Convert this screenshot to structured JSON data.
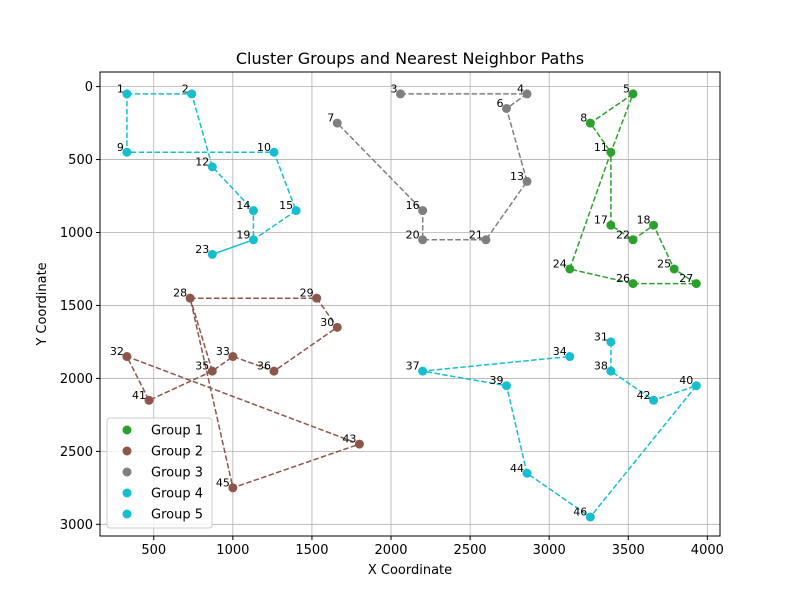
{
  "chart_data": {
    "type": "scatter",
    "title": "Cluster Groups and Nearest Neighbor Paths",
    "xlabel": "X Coordinate",
    "ylabel": "Y Coordinate",
    "xlim": [
      160,
      4080
    ],
    "ylim": [
      3080,
      -100
    ],
    "y_inverted": true,
    "grid": true,
    "legend_position": "lower-left",
    "x_ticks": [
      500,
      1000,
      1500,
      2000,
      2500,
      3000,
      3500,
      4000
    ],
    "y_ticks": [
      0,
      500,
      1000,
      1500,
      2000,
      2500,
      3000
    ],
    "points": [
      {
        "id": "1",
        "x": 330,
        "y": 50
      },
      {
        "id": "2",
        "x": 740,
        "y": 50
      },
      {
        "id": "3",
        "x": 2060,
        "y": 50
      },
      {
        "id": "4",
        "x": 2860,
        "y": 50
      },
      {
        "id": "5",
        "x": 3530,
        "y": 50
      },
      {
        "id": "6",
        "x": 2730,
        "y": 150
      },
      {
        "id": "7",
        "x": 1660,
        "y": 250
      },
      {
        "id": "8",
        "x": 3260,
        "y": 250
      },
      {
        "id": "9",
        "x": 330,
        "y": 450
      },
      {
        "id": "10",
        "x": 1260,
        "y": 450
      },
      {
        "id": "11",
        "x": 3390,
        "y": 450
      },
      {
        "id": "12",
        "x": 870,
        "y": 550
      },
      {
        "id": "13",
        "x": 2860,
        "y": 650
      },
      {
        "id": "14",
        "x": 1130,
        "y": 850
      },
      {
        "id": "15",
        "x": 1400,
        "y": 850
      },
      {
        "id": "16",
        "x": 2200,
        "y": 850
      },
      {
        "id": "17",
        "x": 3390,
        "y": 950
      },
      {
        "id": "18",
        "x": 3660,
        "y": 950
      },
      {
        "id": "19",
        "x": 1130,
        "y": 1050
      },
      {
        "id": "20",
        "x": 2200,
        "y": 1050
      },
      {
        "id": "21",
        "x": 2600,
        "y": 1050
      },
      {
        "id": "22",
        "x": 3530,
        "y": 1050
      },
      {
        "id": "23",
        "x": 870,
        "y": 1150
      },
      {
        "id": "24",
        "x": 3130,
        "y": 1250
      },
      {
        "id": "25",
        "x": 3790,
        "y": 1250
      },
      {
        "id": "26",
        "x": 3530,
        "y": 1350
      },
      {
        "id": "27",
        "x": 3930,
        "y": 1350
      },
      {
        "id": "28",
        "x": 730,
        "y": 1450
      },
      {
        "id": "29",
        "x": 1530,
        "y": 1450
      },
      {
        "id": "30",
        "x": 1660,
        "y": 1650
      },
      {
        "id": "31",
        "x": 3390,
        "y": 1750
      },
      {
        "id": "32",
        "x": 330,
        "y": 1850
      },
      {
        "id": "33",
        "x": 1000,
        "y": 1850
      },
      {
        "id": "34",
        "x": 3130,
        "y": 1850
      },
      {
        "id": "35",
        "x": 870,
        "y": 1950
      },
      {
        "id": "36",
        "x": 1260,
        "y": 1950
      },
      {
        "id": "37",
        "x": 2200,
        "y": 1950
      },
      {
        "id": "38",
        "x": 3390,
        "y": 1950
      },
      {
        "id": "39",
        "x": 2730,
        "y": 2050
      },
      {
        "id": "40",
        "x": 3930,
        "y": 2050
      },
      {
        "id": "41",
        "x": 470,
        "y": 2150
      },
      {
        "id": "42",
        "x": 3660,
        "y": 2150
      },
      {
        "id": "43",
        "x": 1800,
        "y": 2450
      },
      {
        "id": "44",
        "x": 2860,
        "y": 2650
      },
      {
        "id": "45",
        "x": 1000,
        "y": 2750
      },
      {
        "id": "46",
        "x": 3260,
        "y": 2950
      }
    ],
    "groups": [
      {
        "name": "Group 1",
        "color": "#2ca02c",
        "path": [
          "5",
          "8",
          "11",
          "24",
          "26",
          "27",
          "25",
          "18",
          "22",
          "17",
          "11",
          "5"
        ]
      },
      {
        "name": "Group 2",
        "color": "#8c564b",
        "path": [
          "28",
          "29",
          "30",
          "36",
          "33",
          "35",
          "28",
          "45",
          "43",
          "32",
          "41",
          "35"
        ]
      },
      {
        "name": "Group 3",
        "color": "#7f7f7f",
        "path": [
          "3",
          "4",
          "6",
          "13",
          "21",
          "20",
          "16",
          "7"
        ]
      },
      {
        "name": "Group 4",
        "color": "#17becf",
        "path": [
          "31",
          "38",
          "42",
          "40",
          "46",
          "44",
          "39",
          "37",
          "34"
        ]
      },
      {
        "name": "Group 5",
        "color": "#17becf",
        "path": [
          "1",
          "2",
          "12",
          "14",
          "19",
          "23",
          "19",
          "15",
          "10",
          "9",
          "1"
        ]
      }
    ]
  }
}
